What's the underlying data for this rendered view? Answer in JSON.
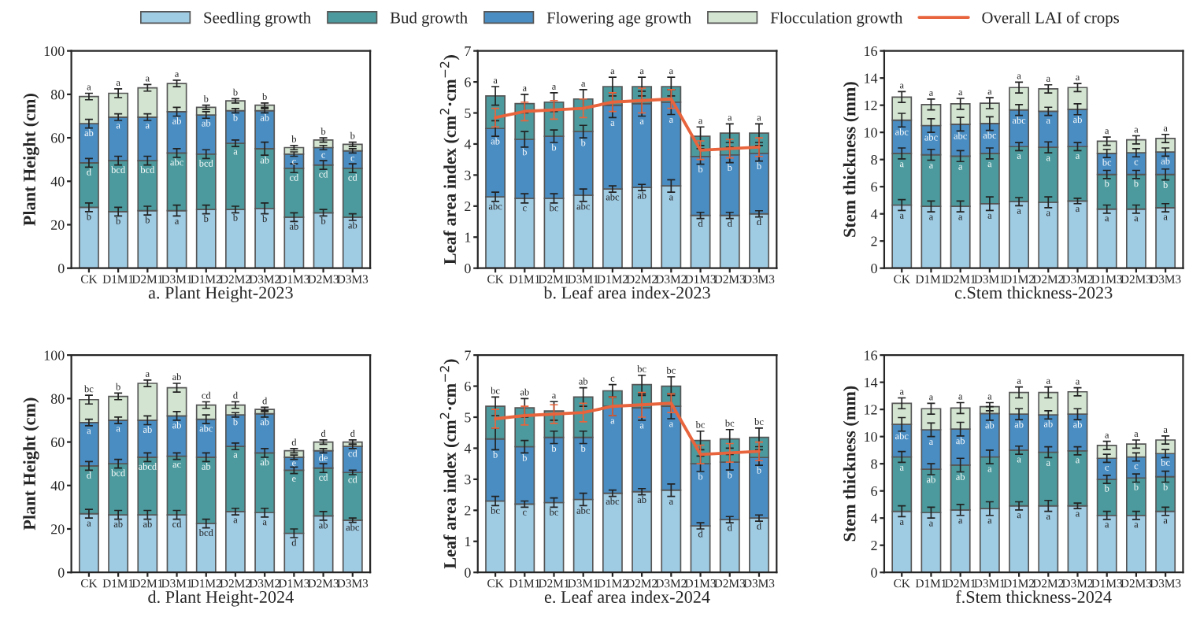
{
  "chart_data": [
    {
      "type": "bar",
      "stacked": true,
      "title": "a. Plant Height-2023",
      "ylabel": "Plant Height (cm)",
      "legend": "top",
      "grid": false,
      "ylim": [
        0,
        100
      ],
      "yticks": [
        0,
        20,
        40,
        60,
        80,
        100
      ],
      "categories": [
        "CK",
        "D1M1",
        "D2M1",
        "D3M1",
        "D1M2",
        "D2M2",
        "D3M2",
        "D1M3",
        "D2M3",
        "D3M3"
      ],
      "series": [
        {
          "name": "Seedling growth",
          "color": "#9fcbe3",
          "values": [
            28,
            26,
            26.5,
            26.5,
            27,
            27,
            27.5,
            23.5,
            25.5,
            23.5
          ],
          "errors": [
            2,
            2,
            2,
            2.5,
            2,
            1.5,
            2.5,
            2,
            1.5,
            1.5
          ],
          "value_labels": [
            "b",
            "b",
            "b",
            "a",
            "b",
            "b",
            "b",
            "ab",
            "b",
            "ab"
          ]
        },
        {
          "name": "Bud growth",
          "color": "#4c9a9d",
          "values": [
            20.5,
            23.5,
            23,
            26.5,
            25.5,
            30.5,
            27.5,
            22.5,
            22,
            22.5
          ],
          "errors": [
            2,
            2,
            2,
            2,
            2,
            1.5,
            3,
            2,
            2,
            2
          ],
          "value_labels": [
            "d",
            "bcd",
            "bcd",
            "abc",
            "bcd",
            "a",
            "ab",
            "cd",
            "cd",
            "cd"
          ]
        },
        {
          "name": "Flowering age growth",
          "color": "#4a8dc2",
          "values": [
            18,
            20,
            20,
            19,
            18,
            15,
            17.5,
            6.5,
            8,
            8
          ],
          "errors": [
            2,
            1.5,
            1.5,
            2,
            1.5,
            1,
            1,
            1,
            1,
            1
          ],
          "value_labels": [
            "ab",
            "a",
            "a",
            "ab",
            "ab",
            "b",
            "ab",
            "c",
            "c",
            "c"
          ]
        },
        {
          "name": "Flocculation growth",
          "color": "#d3e5d1",
          "values": [
            12.5,
            11,
            13.5,
            13,
            3.5,
            4.5,
            2.5,
            3,
            3.5,
            3
          ],
          "errors": [
            1.5,
            2,
            1.5,
            1.5,
            1,
            1,
            1,
            1,
            1,
            1
          ],
          "value_labels": [
            "a",
            "a",
            "a",
            "a",
            "b",
            "b",
            "b",
            "b",
            "b",
            "b"
          ]
        }
      ]
    },
    {
      "type": "bar",
      "stacked": true,
      "title": "b. Leaf area index-2023",
      "ylabel": "Leaf area index (cm$^{2}$·cm$^{−2}$)",
      "legend": "top",
      "grid": false,
      "ylim": [
        0,
        7
      ],
      "yticks": [
        0,
        1,
        2,
        3,
        4,
        5,
        6,
        7
      ],
      "categories": [
        "CK",
        "D1M1",
        "D2M1",
        "D3M1",
        "D1M2",
        "D2M2",
        "D3M2",
        "D1M3",
        "D2M3",
        "D3M3"
      ],
      "series": [
        {
          "color": "#9fcbe3",
          "values": [
            2.3,
            2.25,
            2.25,
            2.35,
            2.55,
            2.6,
            2.65,
            1.7,
            1.7,
            1.75
          ],
          "errors": [
            0.15,
            0.15,
            0.15,
            0.2,
            0.1,
            0.1,
            0.2,
            0.1,
            0.1,
            0.1
          ],
          "value_labels": [
            "abc",
            "c",
            "bc",
            "abc",
            "abc",
            "ab",
            "a",
            "d",
            "d",
            "d"
          ]
        },
        {
          "color": "#4a8dc2",
          "values": [
            2.2,
            1.9,
            2.0,
            2.05,
            2.7,
            2.7,
            2.7,
            1.9,
            1.95,
            1.95
          ],
          "errors": [
            0.25,
            0.25,
            0.2,
            0.2,
            0.4,
            0.4,
            0.4,
            0.25,
            0.25,
            0.25
          ],
          "value_labels": [
            "ab",
            "b",
            "b",
            "b",
            "a",
            "a",
            "a",
            "b",
            "b",
            "b"
          ]
        },
        {
          "color": "#4c9a9d",
          "values": [
            1.05,
            1.15,
            1.1,
            1.05,
            0.6,
            0.55,
            0.5,
            0.65,
            0.7,
            0.65
          ],
          "errors": [
            0.3,
            0.3,
            0.3,
            0.3,
            0.3,
            0.3,
            0.3,
            0.3,
            0.3,
            0.3
          ],
          "value_labels": [
            "a",
            "a",
            "a",
            "a",
            "a",
            "a",
            "a",
            "a",
            "a",
            "a"
          ]
        },
        {
          "type": "line",
          "name": "Overall LAI of crops",
          "color": "#e8643c",
          "values": [
            4.85,
            5.05,
            5.1,
            5.15,
            5.35,
            5.4,
            5.45,
            3.8,
            3.85,
            3.9
          ],
          "errors": [
            0.3,
            0.3,
            0.3,
            0.3,
            0.3,
            0.4,
            0.3,
            0.3,
            0.3,
            0.3
          ]
        }
      ]
    },
    {
      "type": "bar",
      "stacked": true,
      "title": "c.Stem thickness-2023",
      "ylabel": "Stem thickness (mm)",
      "grid": false,
      "ylim": [
        0,
        16
      ],
      "yticks": [
        0,
        2,
        4,
        6,
        8,
        10,
        12,
        14,
        16
      ],
      "categories": [
        "CK",
        "D1M1",
        "D2M1",
        "D3M1",
        "D1M2",
        "D2M2",
        "D3M2",
        "D1M3",
        "D2M3",
        "D3M3"
      ],
      "series": [
        {
          "color": "#9fcbe3",
          "values": [
            4.65,
            4.55,
            4.55,
            4.75,
            4.9,
            4.85,
            4.95,
            4.35,
            4.35,
            4.45
          ],
          "errors": [
            0.4,
            0.4,
            0.4,
            0.5,
            0.3,
            0.4,
            0.2,
            0.3,
            0.3,
            0.3
          ],
          "value_labels": [
            "a",
            "a",
            "a",
            "a",
            "a",
            "a",
            "a",
            "a",
            "a",
            "a"
          ]
        },
        {
          "color": "#4c9a9d",
          "values": [
            3.8,
            3.8,
            3.7,
            3.7,
            4.05,
            4.05,
            4.0,
            2.55,
            2.55,
            2.45
          ],
          "errors": [
            0.4,
            0.4,
            0.4,
            0.4,
            0.3,
            0.4,
            0.3,
            0.3,
            0.3,
            0.4
          ],
          "value_labels": [
            "a",
            "a",
            "a",
            "a",
            "a",
            "a",
            "a",
            "b",
            "b",
            "b"
          ]
        },
        {
          "color": "#4a8dc2",
          "values": [
            2.45,
            2.15,
            2.35,
            2.2,
            2.7,
            2.65,
            2.75,
            1.55,
            1.6,
            1.65
          ],
          "errors": [
            0.5,
            0.5,
            0.5,
            0.5,
            0.4,
            0.3,
            0.4,
            0.3,
            0.3,
            0.3
          ],
          "value_labels": [
            "abc",
            "abc",
            "abc",
            "abc",
            "abc",
            "a",
            "ab",
            "bc",
            "c",
            "ab"
          ]
        },
        {
          "color": "#d3e5d1",
          "values": [
            1.7,
            1.55,
            1.5,
            1.5,
            1.65,
            1.65,
            1.6,
            0.9,
            0.95,
            1.0
          ],
          "errors": [
            0.4,
            0.4,
            0.4,
            0.4,
            0.4,
            0.3,
            0.3,
            0.3,
            0.3,
            0.3
          ],
          "value_labels": [
            "a",
            "a",
            "a",
            "a",
            "a",
            "a",
            "a",
            "a",
            "a",
            "a"
          ]
        }
      ]
    },
    {
      "type": "bar",
      "stacked": true,
      "title": "d. Plant Height-2024",
      "ylabel": "Plant Height (cm)",
      "grid": false,
      "ylim": [
        0,
        100
      ],
      "yticks": [
        0,
        20,
        40,
        60,
        80,
        100
      ],
      "categories": [
        "CK",
        "D1M1",
        "D2M1",
        "D3M1",
        "D1M2",
        "D2M2",
        "D3M2",
        "D1M3",
        "D2M3",
        "D3M3"
      ],
      "series": [
        {
          "color": "#9fcbe3",
          "values": [
            27,
            26.5,
            26.5,
            26.5,
            22.5,
            28,
            27.5,
            18,
            26,
            24
          ],
          "errors": [
            2,
            2,
            2,
            2,
            2,
            1.5,
            2,
            2,
            2,
            1
          ],
          "value_labels": [
            "a",
            "ab",
            "ab",
            "cd",
            "bcd",
            "a",
            "a",
            "d",
            "ab",
            "abc"
          ]
        },
        {
          "color": "#4c9a9d",
          "values": [
            22,
            23.5,
            26.5,
            27,
            30.5,
            30,
            27.5,
            29,
            22,
            22
          ],
          "errors": [
            2,
            2,
            2,
            1.5,
            2,
            1.5,
            2,
            1.5,
            2,
            1
          ],
          "value_labels": [
            "d",
            "bcd",
            "abcd",
            "ac",
            "ab",
            "a",
            "ab",
            "e",
            "cd",
            "cd"
          ]
        },
        {
          "color": "#4a8dc2",
          "values": [
            20,
            20,
            17,
            18.5,
            17.5,
            14.5,
            18,
            6,
            8,
            12
          ],
          "errors": [
            1.5,
            1.5,
            2,
            2,
            2,
            1,
            1.5,
            1,
            1,
            1
          ],
          "value_labels": [
            "a",
            "a",
            "ab",
            "ab",
            "abc",
            "b",
            "ab",
            "e",
            "de",
            "cd"
          ]
        },
        {
          "color": "#d3e5d1",
          "values": [
            10.5,
            11,
            17,
            13,
            6.5,
            4.5,
            2,
            3,
            4,
            2
          ],
          "errors": [
            2,
            1.5,
            1.5,
            2,
            1.5,
            1.5,
            1,
            1,
            1,
            1
          ],
          "value_labels": [
            "bc",
            "b",
            "a",
            "ab",
            "cd",
            "d",
            "d",
            "d",
            "d",
            "d"
          ]
        }
      ]
    },
    {
      "type": "bar",
      "stacked": true,
      "title": "e. Leaf area index-2024",
      "ylabel": "Leaf area index (cm$^{2}$·cm$^{−2}$)",
      "grid": false,
      "ylim": [
        0,
        7
      ],
      "yticks": [
        0,
        1,
        2,
        3,
        4,
        5,
        6,
        7
      ],
      "categories": [
        "CK",
        "D1M1",
        "D2M1",
        "D3M1",
        "D1M2",
        "D2M2",
        "D3M2",
        "D1M3",
        "D2M3",
        "D3M3"
      ],
      "series": [
        {
          "color": "#9fcbe3",
          "values": [
            2.3,
            2.2,
            2.25,
            2.35,
            2.55,
            2.6,
            2.65,
            1.5,
            1.7,
            1.75
          ],
          "errors": [
            0.15,
            0.1,
            0.15,
            0.2,
            0.1,
            0.1,
            0.2,
            0.1,
            0.1,
            0.1
          ],
          "value_labels": [
            "bc",
            "c",
            "bc",
            "abc",
            "abc",
            "ab",
            "a",
            "d",
            "d",
            "d"
          ]
        },
        {
          "color": "#4a8dc2",
          "values": [
            2.0,
            1.85,
            2.1,
            2.0,
            2.8,
            2.7,
            2.7,
            2.0,
            1.85,
            1.95
          ],
          "errors": [
            0.35,
            0.2,
            0.2,
            0.2,
            0.3,
            0.4,
            0.4,
            0.25,
            0.25,
            0.25
          ],
          "value_labels": [
            "b",
            "b",
            "b",
            "b",
            "a",
            "a",
            "a",
            "b",
            "b",
            "b"
          ]
        },
        {
          "color": "#4c9a9d",
          "values": [
            1.05,
            1.25,
            0.85,
            1.3,
            0.5,
            0.75,
            0.65,
            0.75,
            0.75,
            0.65
          ],
          "errors": [
            0.3,
            0.3,
            0.3,
            0.3,
            0.2,
            0.3,
            0.3,
            0.3,
            0.3,
            0.3
          ],
          "value_labels": [
            "bc",
            "ab",
            "a",
            "ab",
            "c",
            "bc",
            "bc",
            "bc",
            "bc",
            "bc"
          ]
        },
        {
          "type": "line",
          "color": "#e8643c",
          "values": [
            4.95,
            5.05,
            5.1,
            5.15,
            5.35,
            5.4,
            5.45,
            3.8,
            3.85,
            3.9
          ],
          "errors": [
            0.3,
            0.3,
            0.3,
            0.3,
            0.3,
            0.4,
            0.3,
            0.3,
            0.3,
            0.3
          ]
        }
      ]
    },
    {
      "type": "bar",
      "stacked": true,
      "title": "f.Stem thickness-2024",
      "ylabel": "Stem thickness (mm)",
      "grid": false,
      "ylim": [
        0,
        16
      ],
      "yticks": [
        0,
        2,
        4,
        6,
        8,
        10,
        12,
        14,
        16
      ],
      "categories": [
        "CK",
        "D1M1",
        "D2M1",
        "D3M1",
        "D1M2",
        "D2M2",
        "D3M2",
        "D1M3",
        "D2M3",
        "D3M3"
      ],
      "series": [
        {
          "color": "#9fcbe3",
          "values": [
            4.5,
            4.4,
            4.6,
            4.7,
            4.9,
            4.9,
            4.9,
            4.2,
            4.2,
            4.5
          ],
          "errors": [
            0.4,
            0.4,
            0.4,
            0.5,
            0.3,
            0.4,
            0.2,
            0.3,
            0.3,
            0.3
          ],
          "value_labels": [
            "a",
            "a",
            "a",
            "a",
            "a",
            "a",
            "a",
            "a",
            "a",
            "a"
          ]
        },
        {
          "color": "#4c9a9d",
          "values": [
            4.0,
            3.2,
            3.3,
            3.8,
            4.1,
            3.95,
            4.05,
            2.65,
            2.75,
            2.55
          ],
          "errors": [
            0.4,
            0.4,
            0.5,
            0.5,
            0.3,
            0.4,
            0.3,
            0.3,
            0.3,
            0.4
          ],
          "value_labels": [
            "a",
            "ab",
            "ab",
            "a",
            "a",
            "a",
            "a",
            "b",
            "b",
            "b"
          ]
        },
        {
          "color": "#4a8dc2",
          "values": [
            2.4,
            2.9,
            2.65,
            3.2,
            2.65,
            2.75,
            2.7,
            1.55,
            1.55,
            1.7
          ],
          "errors": [
            0.5,
            0.5,
            0.5,
            0.5,
            0.4,
            0.3,
            0.4,
            0.3,
            0.3,
            0.3
          ],
          "value_labels": [
            "abc",
            "a",
            "ab",
            "ab",
            "ab",
            "ab",
            "ab",
            "c",
            "c",
            "bc"
          ]
        },
        {
          "color": "#d3e5d1",
          "values": [
            1.55,
            1.55,
            1.55,
            0.5,
            1.6,
            1.65,
            1.65,
            0.95,
            0.95,
            1.0
          ],
          "errors": [
            0.4,
            0.4,
            0.4,
            0.3,
            0.4,
            0.4,
            0.3,
            0.3,
            0.3,
            0.3
          ],
          "value_labels": [
            "a",
            "a",
            "a",
            "a",
            "a",
            "a",
            "a",
            "a",
            "a",
            "a"
          ]
        }
      ]
    }
  ]
}
